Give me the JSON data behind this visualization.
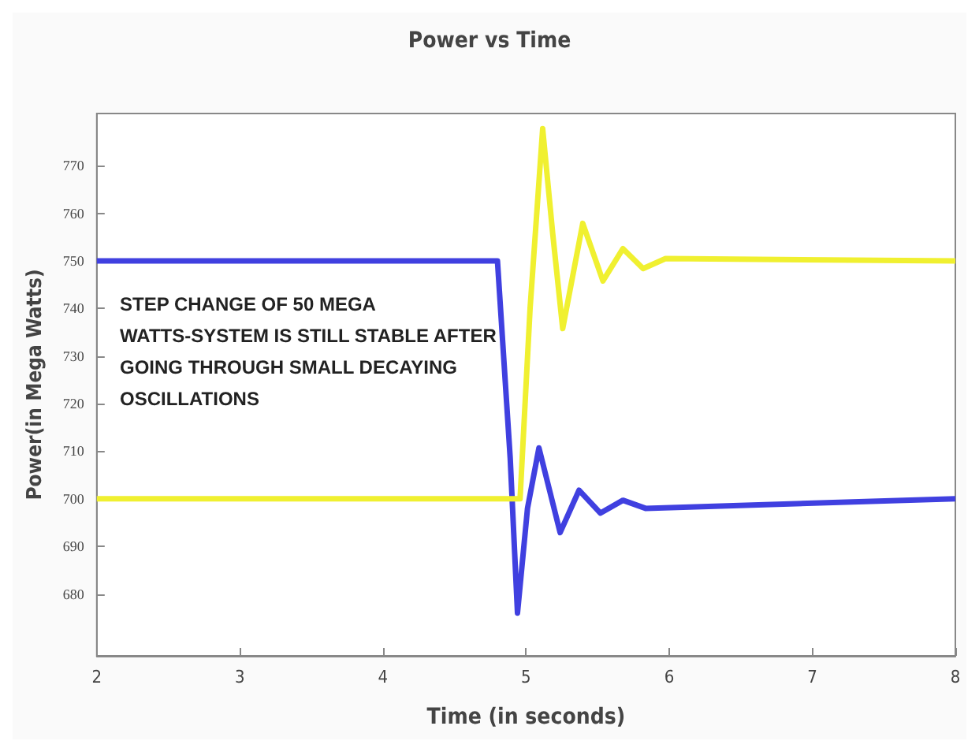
{
  "chart_data": {
    "type": "line",
    "title": "Power vs Time",
    "xlabel": "Time (in seconds)",
    "ylabel": "Power(in Mega Watts)",
    "xlim": [
      2,
      8
    ],
    "xticks": [
      2,
      3,
      4,
      5,
      6,
      7,
      8
    ],
    "ylim": [
      667,
      781
    ],
    "yticks": [
      680,
      690,
      700,
      710,
      720,
      730,
      740,
      750,
      760,
      770
    ],
    "grid": false,
    "marker": "none",
    "line_style": "solid",
    "annotations": [
      "STEP CHANGE OF 50 MEGA\nWATTS-SYSTEM IS STILL STABLE AFTER\nGOING THROUGH SMALL DECAYING\nOSCILLATIONS"
    ],
    "series": [
      {
        "color": "#4040e0",
        "x": [
          2,
          4.8,
          4.889,
          4.94,
          5.01,
          5.09,
          5.238,
          5.37,
          5.519,
          5.677,
          5.835,
          8
        ],
        "values": [
          750,
          750,
          708.6,
          676,
          698,
          710.7,
          692.9,
          701.8,
          697,
          699.7,
          698,
          700
        ]
      },
      {
        "color": "#f0f030",
        "x": [
          2,
          4.958,
          5.028,
          5.116,
          5.186,
          5.256,
          5.396,
          5.537,
          5.677,
          5.818,
          5.975,
          8
        ],
        "values": [
          700,
          700,
          740,
          777.8,
          755.8,
          735.8,
          757.9,
          745.8,
          752.6,
          748.4,
          750.5,
          750
        ]
      }
    ]
  }
}
